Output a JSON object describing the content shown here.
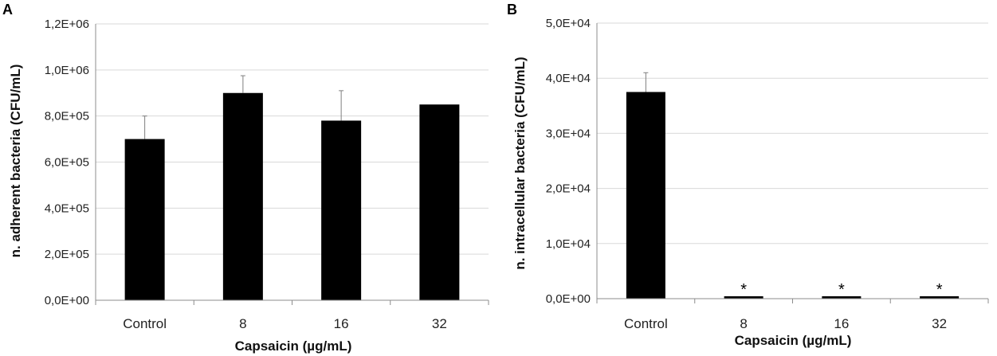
{
  "chart_data": [
    {
      "panel_label": "A",
      "type": "bar",
      "title": "",
      "xlabel": "Capsaicin (µg/mL)",
      "ylabel": "n. adherent bacteria (CFU/mL)",
      "categories": [
        "Control",
        "8",
        "16",
        "32"
      ],
      "values": [
        700000,
        900000,
        780000,
        850000
      ],
      "errors": [
        100000,
        75000,
        130000,
        0
      ],
      "significance": [
        "",
        "",
        "",
        ""
      ],
      "ylim": [
        0,
        1200000
      ],
      "yticks": [
        0,
        200000,
        400000,
        600000,
        800000,
        1000000,
        1200000
      ],
      "ytick_labels": [
        "0,0E+00",
        "2,0E+05",
        "4,0E+05",
        "6,0E+05",
        "8,0E+05",
        "1,0E+06",
        "1,2E+06"
      ],
      "grid": true,
      "bar_color": "#000000"
    },
    {
      "panel_label": "B",
      "type": "bar",
      "title": "",
      "xlabel": "Capsaicin (µg/mL)",
      "ylabel": "n.  intracellular bacteria (CFU/mL)",
      "categories": [
        "Control",
        "8",
        "16",
        "32"
      ],
      "values": [
        37500,
        300,
        250,
        350
      ],
      "errors": [
        3500,
        0,
        0,
        0
      ],
      "significance": [
        "",
        "*",
        "*",
        "*"
      ],
      "ylim": [
        0,
        50000
      ],
      "yticks": [
        0,
        10000,
        20000,
        30000,
        40000,
        50000
      ],
      "ytick_labels": [
        "0,0E+00",
        "1,0E+04",
        "2,0E+04",
        "3,0E+04",
        "4,0E+04",
        "5,0E+04"
      ],
      "grid": true,
      "bar_color": "#000000"
    }
  ]
}
